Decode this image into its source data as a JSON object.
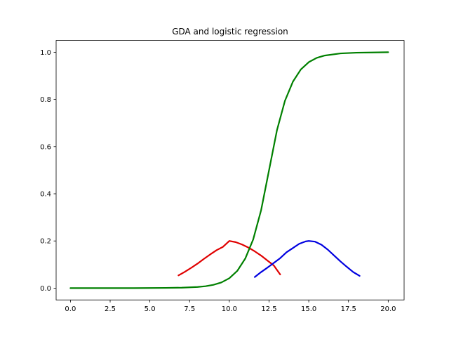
{
  "chart_data": {
    "type": "line",
    "title": "GDA and logistic regression",
    "xlabel": "",
    "ylabel": "",
    "xlim": [
      -0.9,
      21.0
    ],
    "ylim": [
      -0.05,
      1.05
    ],
    "xticks": [
      0.0,
      2.5,
      5.0,
      7.5,
      10.0,
      12.5,
      15.0,
      17.5,
      20.0
    ],
    "xtick_labels": [
      "0.0",
      "2.5",
      "5.0",
      "7.5",
      "10.0",
      "12.5",
      "15.0",
      "17.5",
      "20.0"
    ],
    "yticks": [
      0.0,
      0.2,
      0.4,
      0.6,
      0.8,
      1.0
    ],
    "ytick_labels": [
      "0.0",
      "0.2",
      "0.4",
      "0.6",
      "0.8",
      "1.0"
    ],
    "grid": false,
    "legend": "none",
    "series": [
      {
        "color": "#e00000",
        "x": [
          6.8,
          7.2,
          7.6,
          8.0,
          8.4,
          8.8,
          9.2,
          9.6,
          10.0,
          10.4,
          10.8,
          11.2,
          11.6,
          12.0,
          12.4,
          12.8,
          13.2
        ],
        "y": [
          0.054,
          0.069,
          0.086,
          0.104,
          0.124,
          0.143,
          0.161,
          0.175,
          0.2,
          0.195,
          0.185,
          0.172,
          0.156,
          0.138,
          0.117,
          0.096,
          0.058
        ]
      },
      {
        "color": "#0000e0",
        "x": [
          11.6,
          12.0,
          12.4,
          12.8,
          13.2,
          13.6,
          14.0,
          14.4,
          14.8,
          15.0,
          15.4,
          15.8,
          16.2,
          16.6,
          17.0,
          17.4,
          17.8,
          18.2
        ],
        "y": [
          0.047,
          0.068,
          0.087,
          0.107,
          0.127,
          0.152,
          0.17,
          0.188,
          0.198,
          0.2,
          0.197,
          0.184,
          0.163,
          0.138,
          0.113,
          0.09,
          0.068,
          0.052
        ]
      },
      {
        "color": "#008000",
        "x": [
          0.0,
          2.0,
          4.0,
          6.0,
          7.0,
          8.0,
          8.5,
          9.0,
          9.5,
          10.0,
          10.5,
          11.0,
          11.5,
          12.0,
          12.5,
          13.0,
          13.5,
          14.0,
          14.5,
          15.0,
          15.5,
          16.0,
          17.0,
          18.0,
          19.0,
          20.0
        ],
        "y": [
          0.0,
          0.0,
          0.0,
          0.001,
          0.002,
          0.005,
          0.008,
          0.014,
          0.024,
          0.042,
          0.073,
          0.125,
          0.206,
          0.33,
          0.5,
          0.67,
          0.794,
          0.875,
          0.927,
          0.958,
          0.976,
          0.986,
          0.995,
          0.998,
          0.999,
          1.0
        ]
      }
    ]
  }
}
